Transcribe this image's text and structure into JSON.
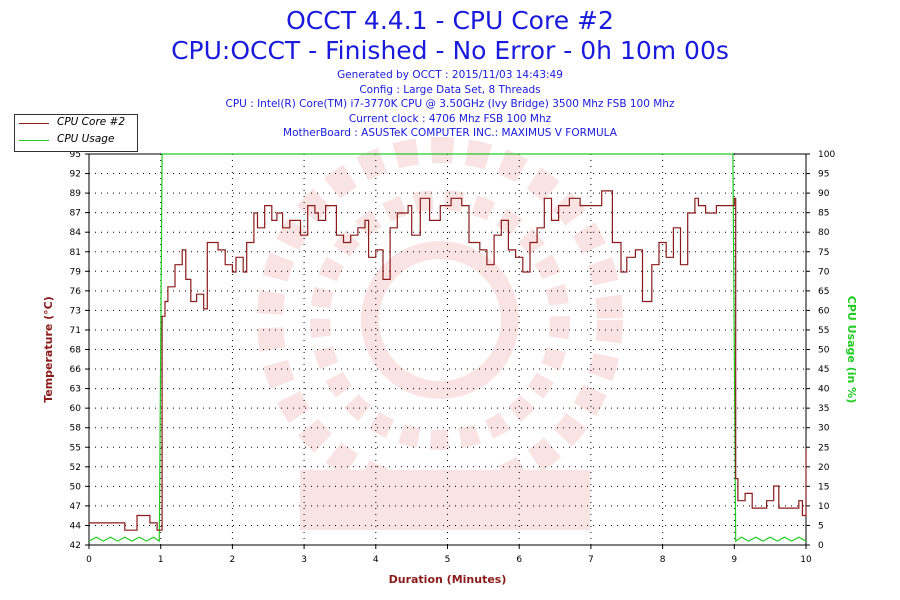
{
  "header": {
    "title_line1": "OCCT 4.4.1 - CPU Core #2",
    "title_line2": "CPU:OCCT - Finished - No Error - 0h 10m 00s",
    "info": [
      "Generated by OCCT : 2015/11/03 14:43:49",
      "Config : Large Data Set, 8 Threads",
      "CPU : Intel(R) Core(TM) i7-3770K CPU @ 3.50GHz (Ivy Bridge) 3500 Mhz FSB 100 Mhz",
      "Current clock : 4706 Mhz FSB 100 Mhz",
      "MotherBoard : ASUSTeK COMPUTER INC.: MAXIMUS V FORMULA"
    ]
  },
  "colors": {
    "temperature": "#8b1a1a",
    "usage": "#22cc22",
    "title": "#1a1adc"
  },
  "chart_data": {
    "type": "line",
    "title": "OCCT 4.4.1 - CPU Core #2",
    "subtitle": "CPU:OCCT - Finished - No Error - 0h 10m 00s",
    "xlabel": "Duration (Minutes)",
    "ylabel": "Temperature (°C)",
    "y2label": "CPU Usage (in %)",
    "xlim": [
      0,
      10
    ],
    "ylim": [
      42,
      95
    ],
    "y2lim": [
      0,
      100
    ],
    "grid": true,
    "legend_position": "top-left",
    "x_ticks": [
      "0",
      "1",
      "2",
      "3",
      "4",
      "5",
      "6",
      "7",
      "8",
      "9",
      "10"
    ],
    "y_ticks": [
      "42",
      "44",
      "47",
      "50",
      "52",
      "55",
      "58",
      "60",
      "63",
      "66",
      "68",
      "71",
      "73",
      "76",
      "79",
      "81",
      "84",
      "87",
      "89",
      "92",
      "95"
    ],
    "y2_ticks": [
      "0",
      "5",
      "10",
      "15",
      "20",
      "25",
      "30",
      "35",
      "40",
      "45",
      "50",
      "55",
      "60",
      "65",
      "70",
      "75",
      "80",
      "85",
      "90",
      "95",
      "100"
    ],
    "series": [
      {
        "name": "CPU Core #2",
        "axis": "left",
        "x": [
          0,
          0.3,
          0.5,
          0.67,
          0.7,
          0.85,
          0.95,
          1.02,
          1.06,
          1.1,
          1.2,
          1.3,
          1.35,
          1.42,
          1.5,
          1.6,
          1.65,
          1.8,
          1.9,
          2.0,
          2.05,
          2.15,
          2.2,
          2.3,
          2.35,
          2.45,
          2.55,
          2.62,
          2.7,
          2.8,
          2.95,
          3.05,
          3.15,
          3.2,
          3.3,
          3.45,
          3.55,
          3.65,
          3.75,
          3.85,
          3.9,
          4.0,
          4.1,
          4.2,
          4.3,
          4.45,
          4.5,
          4.62,
          4.75,
          4.9,
          5.05,
          5.2,
          5.3,
          5.45,
          5.55,
          5.65,
          5.75,
          5.85,
          5.95,
          6.05,
          6.15,
          6.25,
          6.35,
          6.45,
          6.55,
          6.7,
          6.85,
          7.05,
          7.15,
          7.3,
          7.42,
          7.5,
          7.62,
          7.72,
          7.85,
          7.95,
          8.05,
          8.15,
          8.25,
          8.35,
          8.45,
          8.5,
          8.6,
          8.75,
          8.9,
          9.0,
          9.02,
          9.05,
          9.15,
          9.25,
          9.35,
          9.45,
          9.55,
          9.62,
          9.7,
          9.8,
          9.9,
          9.95,
          10.0
        ],
        "values": [
          45,
          45,
          44,
          46,
          46,
          45,
          44,
          73,
          75,
          77,
          80,
          82,
          78,
          75,
          76,
          74,
          83,
          82,
          80,
          79,
          81,
          79,
          83,
          87,
          85,
          88,
          86,
          87,
          85,
          86,
          84,
          88,
          87,
          86,
          88,
          84,
          83,
          84,
          85,
          86,
          81,
          82,
          78,
          85,
          87,
          88,
          84,
          89,
          86,
          88,
          89,
          88,
          83,
          82,
          80,
          84,
          86,
          82,
          81,
          79,
          83,
          85,
          89,
          86,
          88,
          89,
          88,
          88,
          90,
          83,
          79,
          81,
          82,
          75,
          80,
          83,
          81,
          85,
          80,
          87,
          89,
          88,
          87,
          88,
          88,
          89,
          51,
          48,
          49,
          47,
          47,
          48,
          50,
          47,
          47,
          47,
          48,
          46,
          55
        ]
      },
      {
        "name": "CPU Usage",
        "axis": "right",
        "x": [
          0,
          0.1,
          0.2,
          0.3,
          0.4,
          0.5,
          0.6,
          0.7,
          0.8,
          0.9,
          0.98,
          1.02,
          1.04,
          1.06,
          2,
          3,
          4,
          5,
          6,
          7,
          8,
          8.98,
          9.0,
          9.02,
          9.1,
          9.2,
          9.3,
          9.4,
          9.5,
          9.6,
          9.7,
          9.8,
          9.9,
          10.0
        ],
        "values": [
          1,
          2,
          1,
          2,
          1,
          2,
          1,
          2,
          1,
          2,
          1,
          100,
          100,
          100,
          100,
          100,
          100,
          100,
          100,
          100,
          100,
          100,
          50,
          1,
          2,
          1,
          2,
          1,
          2,
          1,
          2,
          1,
          2,
          1
        ]
      }
    ]
  }
}
